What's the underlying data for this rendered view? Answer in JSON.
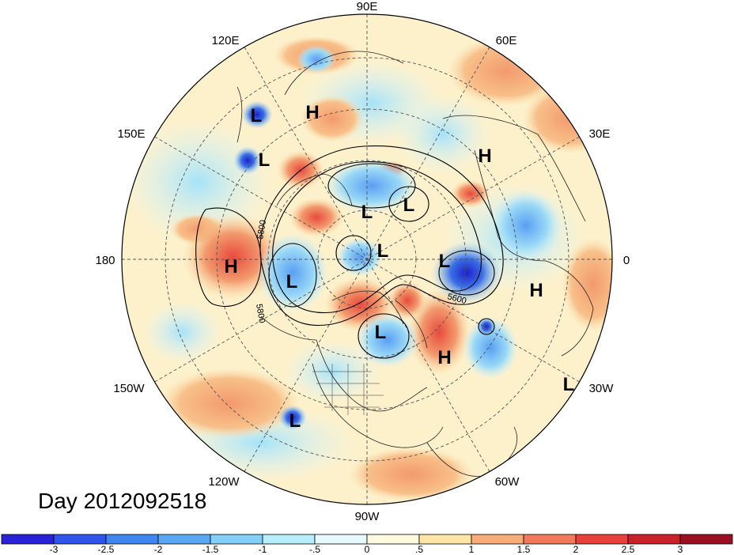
{
  "map": {
    "longitude_labels": {
      "lon_90e": "90E",
      "lon_60e": "60E",
      "lon_30e": "30E",
      "lon_0": "0",
      "lon_30w": "30W",
      "lon_60w": "60W",
      "lon_90w": "90W",
      "lon_120w": "120W",
      "lon_150w": "150W",
      "lon_180": "180",
      "lon_150e": "150E",
      "lon_120e": "120E"
    },
    "pressure_centers": [
      {
        "id": "c1",
        "label": "L"
      },
      {
        "id": "c2",
        "label": "H"
      },
      {
        "id": "c3",
        "label": "H"
      },
      {
        "id": "c4",
        "label": "L"
      },
      {
        "id": "c5",
        "label": "L"
      },
      {
        "id": "c6",
        "label": "L"
      },
      {
        "id": "c7",
        "label": "H"
      },
      {
        "id": "c8",
        "label": "L"
      },
      {
        "id": "c9",
        "label": "L"
      },
      {
        "id": "c10",
        "label": "L"
      },
      {
        "id": "c11",
        "label": "L"
      },
      {
        "id": "c12",
        "label": "H"
      },
      {
        "id": "c13",
        "label": "H"
      },
      {
        "id": "c14",
        "label": "L"
      },
      {
        "id": "c15",
        "label": "L"
      }
    ],
    "contour_labels": [
      "5800",
      "5800",
      "5600"
    ],
    "date_text": "Day 2012092518"
  },
  "colorbar": {
    "tick_labels": [
      "-3",
      "-2.5",
      "-2",
      "-1.5",
      "-1",
      "-.5",
      "0",
      ".5",
      "1",
      "1.5",
      "2",
      "2.5",
      "3"
    ],
    "colors": [
      "#2a22d6",
      "#2f55ec",
      "#3f86f0",
      "#5aa8f4",
      "#84cff8",
      "#b7eefc",
      "#e6fafe",
      "#fefadf",
      "#fde5a6",
      "#f7ad78",
      "#f07a5a",
      "#e8403a",
      "#c9202b",
      "#9a0f22"
    ]
  }
}
